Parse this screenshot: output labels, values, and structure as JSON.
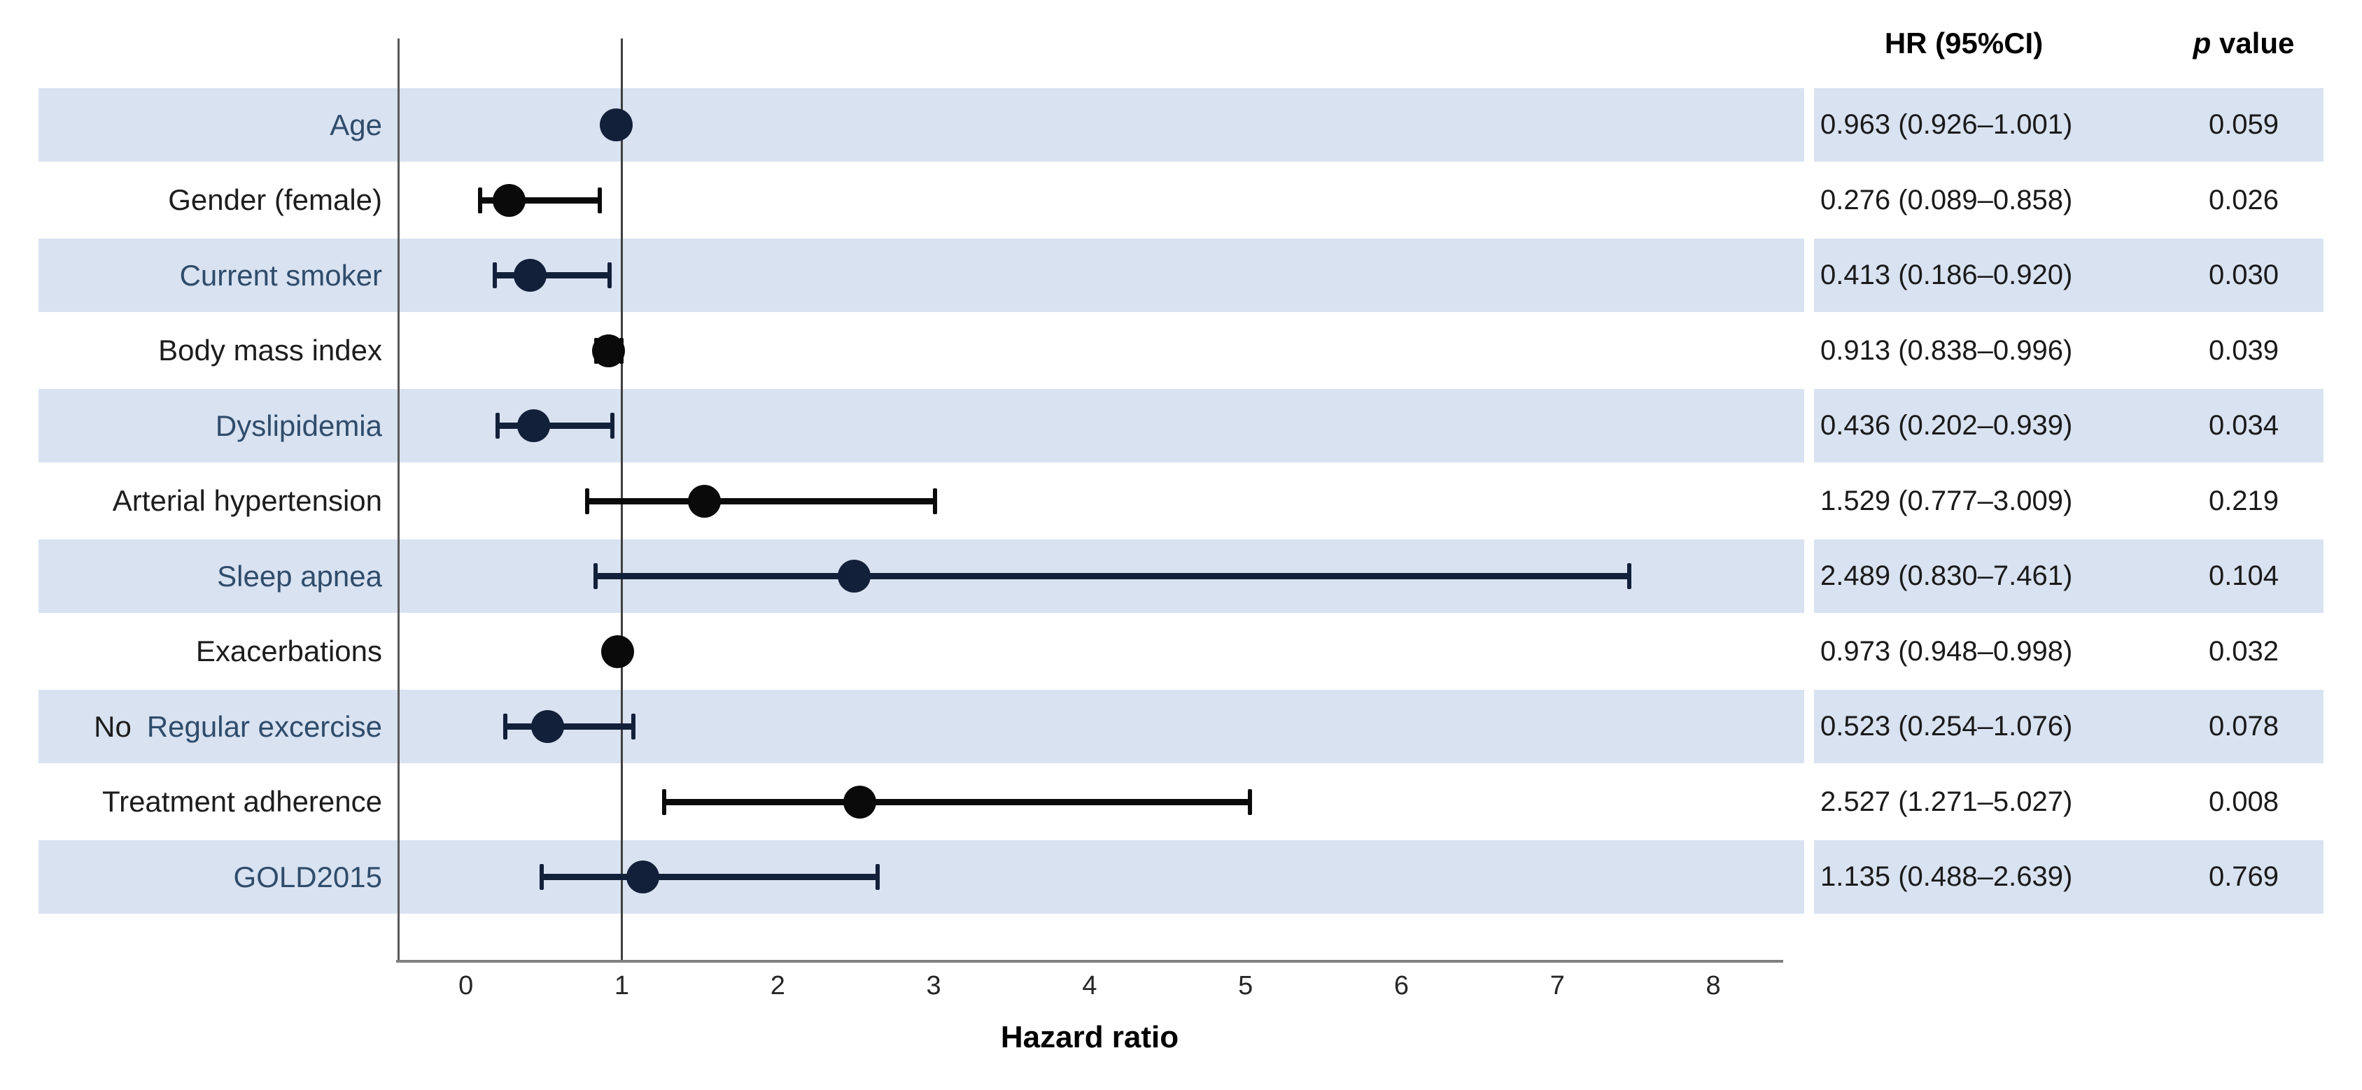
{
  "colors": {
    "band": "#d9e2f1",
    "marker_shaded": "#13203a",
    "marker_plain": "#0a0a0a",
    "label_shaded": "#2f4c6b",
    "label_plain": "#1d1d1d",
    "value_text": "#1a1a1a",
    "axis_line": "#808080",
    "plot_border_line": "#595959",
    "reference_line": "#3f3f3f",
    "tick_text": "#262626"
  },
  "table": {
    "hr_header": "HR (95%CI)",
    "p_header_italic": "p",
    "p_header_rest": " value"
  },
  "chart_data": {
    "type": "forest",
    "title": "",
    "xlabel": "Hazard ratio",
    "x_ticks": [
      0,
      1,
      2,
      3,
      4,
      5,
      6,
      7,
      8
    ],
    "xlim": [
      -0.45,
      8.45
    ],
    "reference_line": 1,
    "legend": "none",
    "grid": "off",
    "rows": [
      {
        "prefix": "",
        "label": "Age",
        "shaded": true,
        "hr": 0.963,
        "ci_low": 0.926,
        "ci_high": 1.001,
        "hr_ci_text": "0.963 (0.926–1.001)",
        "p_text": "0.059"
      },
      {
        "prefix": "",
        "label": "Gender (female)",
        "shaded": false,
        "hr": 0.276,
        "ci_low": 0.089,
        "ci_high": 0.858,
        "hr_ci_text": "0.276 (0.089–0.858)",
        "p_text": "0.026"
      },
      {
        "prefix": "",
        "label": "Current smoker",
        "shaded": true,
        "hr": 0.413,
        "ci_low": 0.186,
        "ci_high": 0.92,
        "hr_ci_text": "0.413 (0.186–0.920)",
        "p_text": "0.030"
      },
      {
        "prefix": "",
        "label": "Body mass index",
        "shaded": false,
        "hr": 0.913,
        "ci_low": 0.838,
        "ci_high": 0.996,
        "hr_ci_text": "0.913 (0.838–0.996)",
        "p_text": "0.039"
      },
      {
        "prefix": "",
        "label": "Dyslipidemia",
        "shaded": true,
        "hr": 0.436,
        "ci_low": 0.202,
        "ci_high": 0.939,
        "hr_ci_text": "0.436 (0.202–0.939)",
        "p_text": "0.034"
      },
      {
        "prefix": "",
        "label": "Arterial hypertension",
        "shaded": false,
        "hr": 1.529,
        "ci_low": 0.777,
        "ci_high": 3.009,
        "hr_ci_text": "1.529 (0.777–3.009)",
        "p_text": "0.219"
      },
      {
        "prefix": "",
        "label": "Sleep apnea",
        "shaded": true,
        "hr": 2.489,
        "ci_low": 0.83,
        "ci_high": 7.461,
        "hr_ci_text": "2.489 (0.830–7.461)",
        "p_text": "0.104"
      },
      {
        "prefix": "",
        "label": "Exacerbations",
        "shaded": false,
        "hr": 0.973,
        "ci_low": 0.948,
        "ci_high": 0.998,
        "hr_ci_text": "0.973 (0.948–0.998)",
        "p_text": "0.032"
      },
      {
        "prefix": "No",
        "label": "Regular excercise",
        "shaded": true,
        "hr": 0.523,
        "ci_low": 0.254,
        "ci_high": 1.076,
        "hr_ci_text": "0.523 (0.254–1.076)",
        "p_text": "0.078"
      },
      {
        "prefix": "",
        "label": "Treatment adherence",
        "shaded": false,
        "hr": 2.527,
        "ci_low": 1.271,
        "ci_high": 5.027,
        "hr_ci_text": "2.527 (1.271–5.027)",
        "p_text": "0.008"
      },
      {
        "prefix": "",
        "label": "GOLD2015",
        "shaded": true,
        "hr": 1.135,
        "ci_low": 0.488,
        "ci_high": 2.639,
        "hr_ci_text": "1.135 (0.488–2.639)",
        "p_text": "0.769"
      }
    ]
  }
}
